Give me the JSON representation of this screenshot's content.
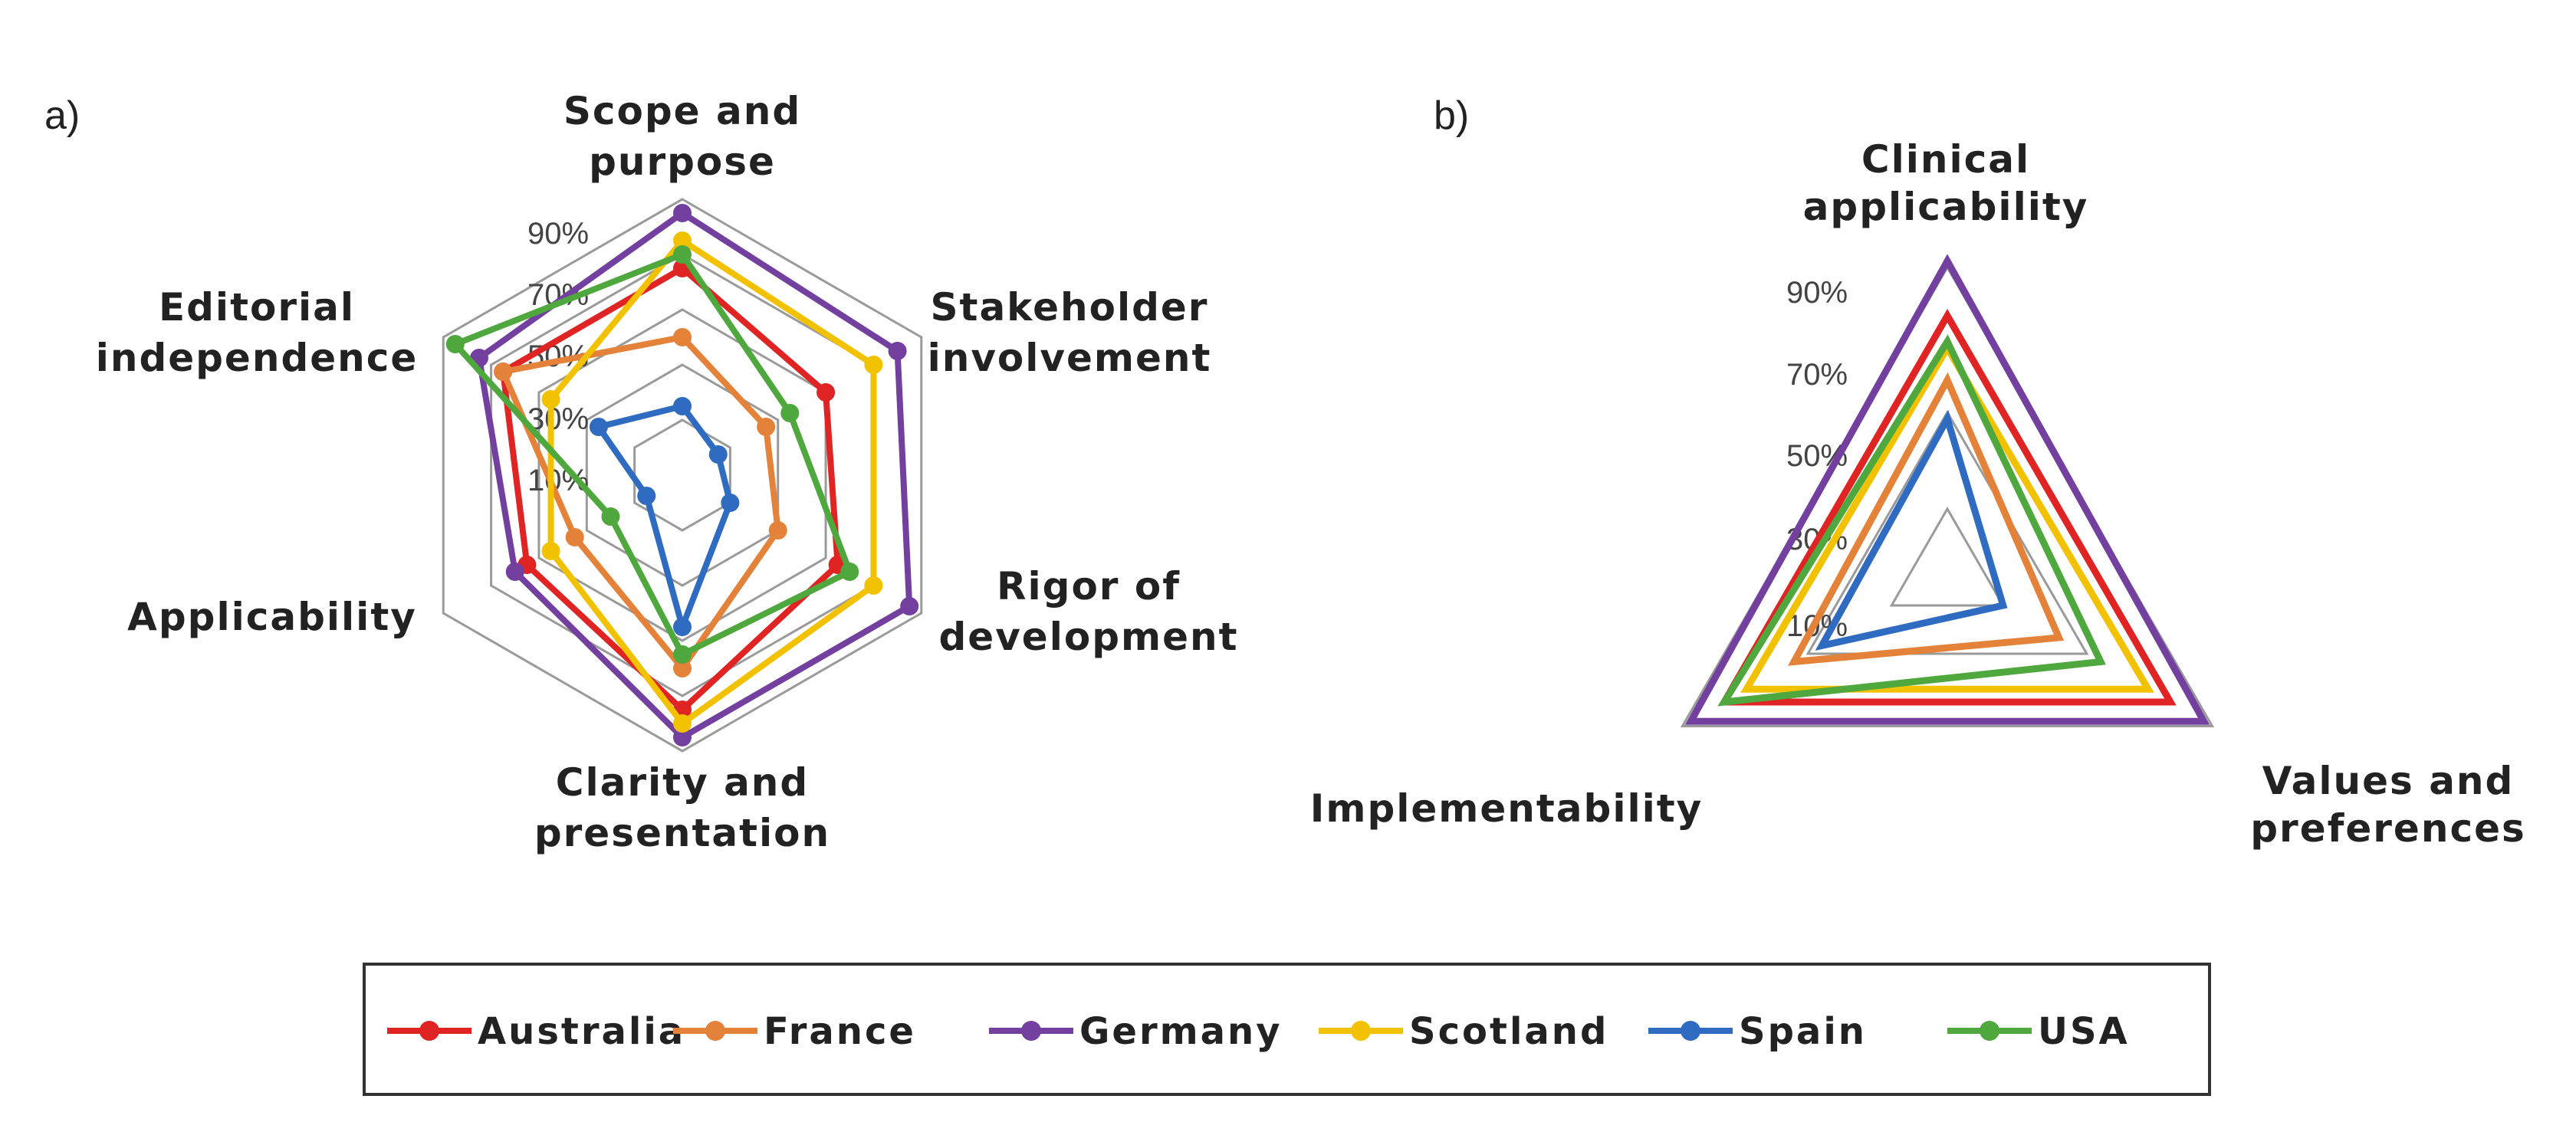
{
  "colors": {
    "Australia": "#e02424",
    "France": "#e5823a",
    "Germany": "#7340a0",
    "Scotland": "#f2c200",
    "Spain": "#2f6bc0",
    "USA": "#4fa83d",
    "grid": "#9a9a9a"
  },
  "chart_data": [
    {
      "type": "radar",
      "panel_label": "a)",
      "axes": [
        [
          "Scope and",
          "purpose"
        ],
        [
          "Stakeholder",
          "involvement"
        ],
        [
          "Rigor of",
          "development"
        ],
        [
          "Clarity and",
          "presentation"
        ],
        [
          "Applicability"
        ],
        [
          "Editorial",
          "independence"
        ]
      ],
      "tick_labels": [
        "10%",
        "30%",
        "50%",
        "70%",
        "90%"
      ],
      "grid_levels": [
        20,
        40,
        60,
        80,
        100
      ],
      "range": [
        0,
        100
      ],
      "series": [
        {
          "name": "Australia",
          "values": [
            75,
            60,
            65,
            85,
            65,
            75
          ]
        },
        {
          "name": "France",
          "values": [
            50,
            35,
            40,
            70,
            45,
            75
          ]
        },
        {
          "name": "Germany",
          "values": [
            95,
            90,
            95,
            95,
            70,
            85
          ]
        },
        {
          "name": "Scotland",
          "values": [
            85,
            80,
            80,
            90,
            55,
            55
          ]
        },
        {
          "name": "Spain",
          "values": [
            25,
            15,
            20,
            55,
            15,
            35
          ]
        },
        {
          "name": "USA",
          "values": [
            80,
            45,
            70,
            65,
            30,
            95
          ]
        }
      ]
    },
    {
      "type": "radar",
      "panel_label": "b)",
      "axes": [
        [
          "Clinical",
          "applicability"
        ],
        [
          "Values and",
          "preferences"
        ],
        [
          "Implementability"
        ]
      ],
      "tick_labels": [
        "10%",
        "30%",
        "50%",
        "70%",
        "90%"
      ],
      "grid_levels": [
        20,
        50,
        80,
        95
      ],
      "range": [
        0,
        100
      ],
      "series": [
        {
          "name": "Australia",
          "values": [
            80,
            80,
            80
          ]
        },
        {
          "name": "France",
          "values": [
            60,
            40,
            55
          ]
        },
        {
          "name": "Germany",
          "values": [
            97,
            92,
            92
          ]
        },
        {
          "name": "Scotland",
          "values": [
            70,
            72,
            72
          ]
        },
        {
          "name": "Spain",
          "values": [
            48,
            20,
            45
          ]
        },
        {
          "name": "USA",
          "values": [
            72,
            55,
            80
          ]
        }
      ]
    }
  ],
  "legend": {
    "items": [
      "Australia",
      "France",
      "Germany",
      "Scotland",
      "Spain",
      "USA"
    ]
  }
}
